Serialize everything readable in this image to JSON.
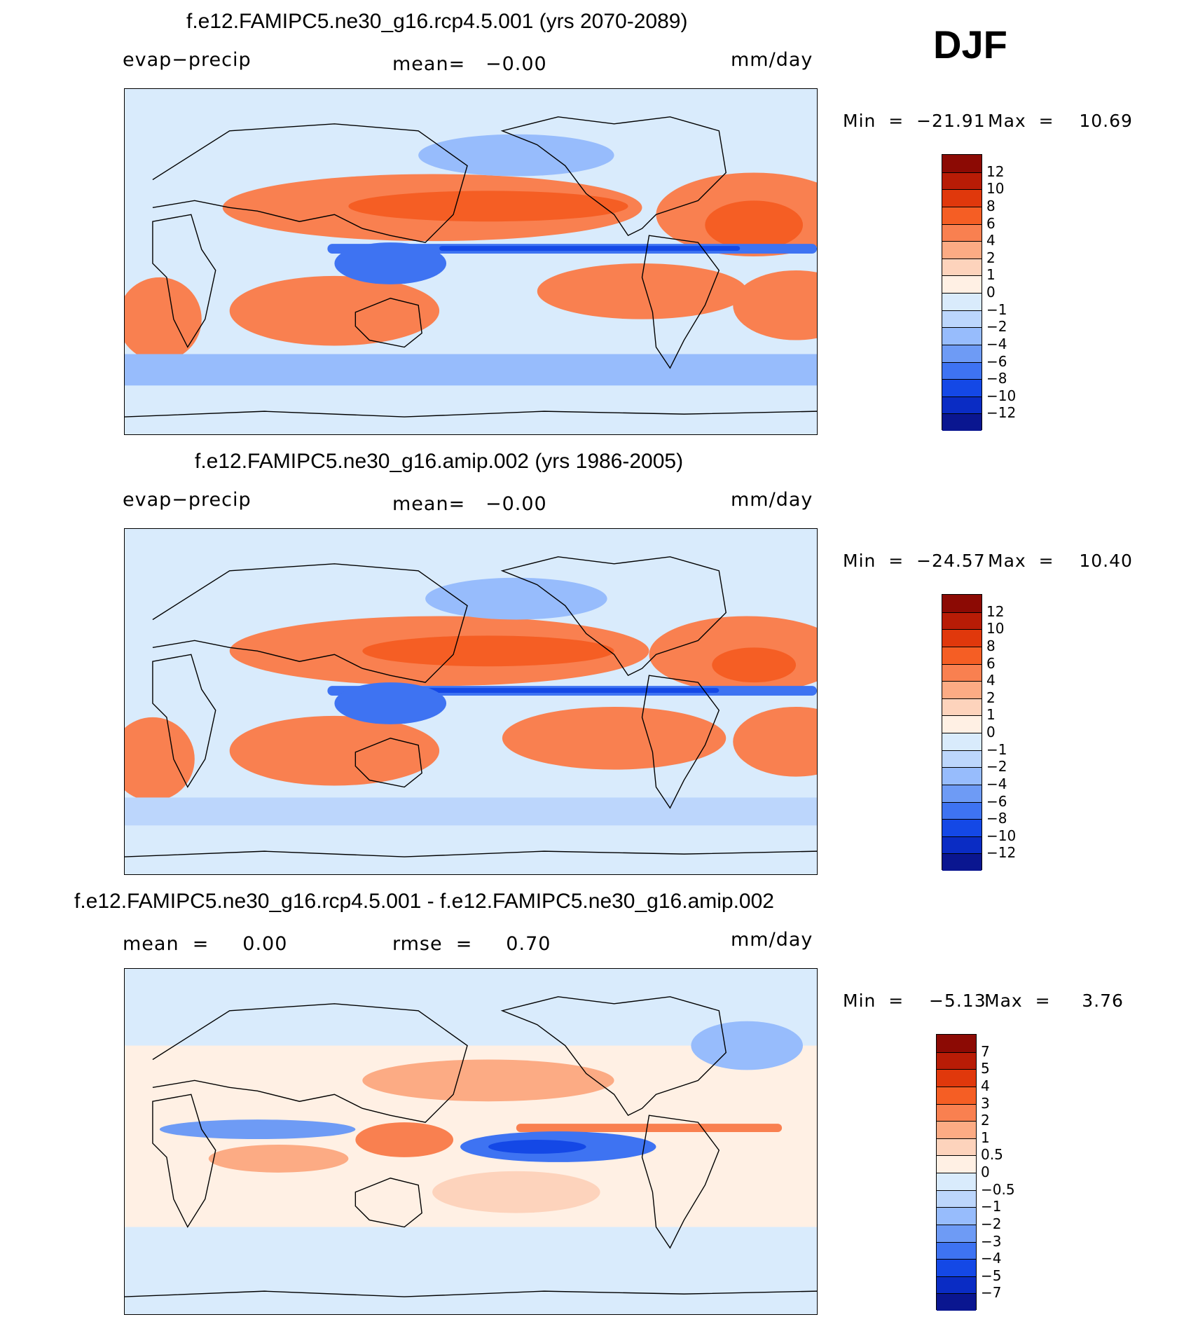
{
  "season": "DJF",
  "colors": {
    "land_outline": "#000000",
    "ocean_background": "#d9ebfc"
  },
  "chart_data": [
    {
      "type": "heatmap",
      "title": "f.e12.FAMIPC5.ne30_g16.rcp4.5.001 (yrs 2070-2089)",
      "left_label": "evap−precip",
      "center_label": "mean=   −0.00",
      "right_label": "mm/day",
      "min_label": "Min  =  −21.91",
      "max_label": "Max  =    10.69",
      "levels": [
        "12",
        "10",
        "8",
        "6",
        "4",
        "2",
        "1",
        "0",
        "−1",
        "−2",
        "−4",
        "−6",
        "−8",
        "−10",
        "−12"
      ],
      "colors": [
        "#8c0a04",
        "#b81c06",
        "#e0380c",
        "#f55e24",
        "#f98050",
        "#fcab84",
        "#fdd3bc",
        "#fff0e4",
        "#d9ebfc",
        "#bcd6fc",
        "#97bcfc",
        "#6e9bf5",
        "#3e73f2",
        "#1448e6",
        "#0a2cc4",
        "#0a1690"
      ]
    },
    {
      "type": "heatmap",
      "title": "f.e12.FAMIPC5.ne30_g16.amip.002 (yrs 1986-2005)",
      "left_label": "evap−precip",
      "center_label": "mean=   −0.00",
      "right_label": "mm/day",
      "min_label": "Min  =  −24.57",
      "max_label": "Max  =    10.40",
      "levels": [
        "12",
        "10",
        "8",
        "6",
        "4",
        "2",
        "1",
        "0",
        "−1",
        "−2",
        "−4",
        "−6",
        "−8",
        "−10",
        "−12"
      ],
      "colors": [
        "#8c0a04",
        "#b81c06",
        "#e0380c",
        "#f55e24",
        "#f98050",
        "#fcab84",
        "#fdd3bc",
        "#fff0e4",
        "#d9ebfc",
        "#bcd6fc",
        "#97bcfc",
        "#6e9bf5",
        "#3e73f2",
        "#1448e6",
        "#0a2cc4",
        "#0a1690"
      ]
    },
    {
      "type": "heatmap",
      "title": "f.e12.FAMIPC5.ne30_g16.rcp4.5.001 - f.e12.FAMIPC5.ne30_g16.amip.002",
      "left_label": "mean  =     0.00",
      "center_label": "rmse  =     0.70",
      "right_label": "mm/day",
      "min_label": "Min  =    −5.13",
      "max_label": "Max  =     3.76",
      "levels": [
        "7",
        "5",
        "4",
        "3",
        "2",
        "1",
        "0.5",
        "0",
        "−0.5",
        "−1",
        "−2",
        "−3",
        "−4",
        "−5",
        "−7"
      ],
      "colors": [
        "#8c0a04",
        "#b81c06",
        "#e0380c",
        "#f55e24",
        "#f98050",
        "#fcab84",
        "#fdd3bc",
        "#fff0e4",
        "#d9ebfc",
        "#bcd6fc",
        "#97bcfc",
        "#6e9bf5",
        "#3e73f2",
        "#1448e6",
        "#0a2cc4",
        "#0a1690"
      ]
    }
  ]
}
